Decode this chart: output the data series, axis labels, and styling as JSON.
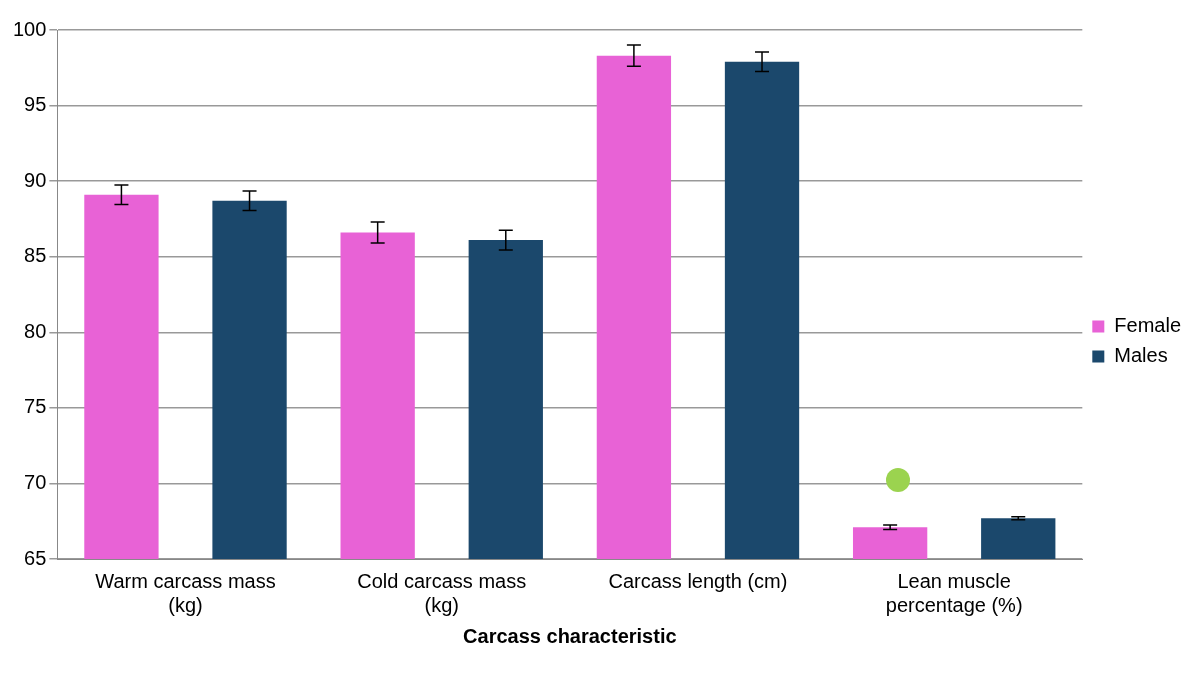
{
  "chart_data": {
    "type": "bar",
    "xlabel": "Carcass characteristic",
    "categories": [
      "Warm carcass mass (kg)",
      "Cold carcass mass (kg)",
      "Carcass length (cm)",
      "Lean muscle percentage (%)"
    ],
    "series": [
      {
        "name": "Female",
        "color": "#e862d6",
        "values": [
          89.1,
          86.6,
          98.3,
          67.1
        ],
        "errors": [
          0.65,
          0.7,
          0.7,
          0.15
        ]
      },
      {
        "name": "Males",
        "color": "#1b486c",
        "values": [
          88.7,
          86.1,
          97.9,
          67.7
        ],
        "errors": [
          0.65,
          0.65,
          0.65,
          0.1
        ]
      }
    ],
    "ylim": [
      65,
      100
    ],
    "yticks": [
      65,
      70,
      75,
      80,
      85,
      90,
      95,
      100
    ],
    "grid": "y",
    "legend": "right"
  }
}
